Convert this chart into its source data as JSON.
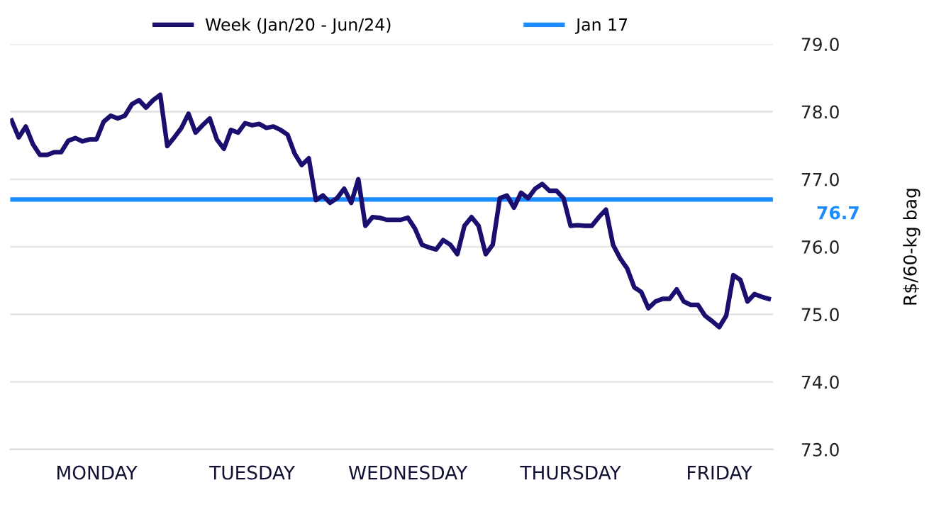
{
  "chart_data": {
    "type": "line",
    "ylabel": "R$/60-kg bag",
    "categories": [
      null,
      null,
      null,
      null,
      null,
      null,
      null,
      null,
      null,
      null,
      null,
      null,
      "MONDAY",
      null,
      null,
      null,
      null,
      null,
      null,
      null,
      null,
      null,
      null,
      null,
      null,
      null,
      null,
      null,
      null,
      null,
      null,
      null,
      null,
      null,
      "TUESDAY",
      null,
      null,
      null,
      null,
      null,
      null,
      null,
      null,
      null,
      null,
      null,
      null,
      null,
      null,
      null,
      null,
      null,
      null,
      null,
      null,
      null,
      "WEDNESDAY",
      null,
      null,
      null,
      null,
      null,
      null,
      null,
      null,
      null,
      null,
      null,
      null,
      null,
      null,
      null,
      null,
      null,
      null,
      null,
      null,
      null,
      null,
      "THURSDAY",
      null,
      null,
      null,
      null,
      null,
      null,
      null,
      null,
      null,
      null,
      null,
      null,
      null,
      null,
      null,
      null,
      null,
      null,
      null,
      null,
      "FRIDAY",
      null,
      null,
      null,
      null,
      null,
      null,
      null
    ],
    "series": [
      {
        "name": "Week (Jan/20 - Jun/24)",
        "color": "#1a0f6e",
        "values": [
          77.87,
          77.62,
          77.78,
          77.52,
          77.36,
          77.36,
          77.4,
          77.4,
          77.57,
          77.61,
          77.56,
          77.59,
          77.59,
          77.85,
          77.94,
          77.9,
          77.94,
          78.11,
          78.17,
          78.06,
          78.17,
          78.25,
          77.49,
          77.62,
          77.76,
          77.97,
          77.69,
          77.8,
          77.9,
          77.59,
          77.45,
          77.73,
          77.69,
          77.83,
          77.8,
          77.82,
          77.76,
          77.78,
          77.73,
          77.66,
          77.38,
          77.21,
          77.31,
          76.69,
          76.76,
          76.65,
          76.72,
          76.86,
          76.65,
          77.0,
          76.31,
          76.44,
          76.43,
          76.4,
          76.4,
          76.4,
          76.43,
          76.27,
          76.03,
          75.99,
          75.96,
          76.1,
          76.03,
          75.89,
          76.31,
          76.44,
          76.31,
          75.89,
          76.03,
          76.72,
          76.76,
          76.58,
          76.8,
          76.72,
          76.86,
          76.93,
          76.83,
          76.83,
          76.72,
          76.31,
          76.32,
          76.31,
          76.31,
          76.44,
          76.55,
          76.03,
          75.83,
          75.68,
          75.4,
          75.33,
          75.09,
          75.19,
          75.23,
          75.23,
          75.37,
          75.19,
          75.14,
          75.14,
          74.98,
          74.9,
          74.81,
          74.98,
          75.58,
          75.51,
          75.19,
          75.3,
          75.26,
          75.23
        ]
      }
    ],
    "ylim": [
      73.0,
      79.0
    ],
    "yticks": [
      {
        "value": 73,
        "label": "73.0"
      },
      {
        "value": 74,
        "label": "74.0"
      },
      {
        "value": 75,
        "label": "75.0"
      },
      {
        "value": 76,
        "label": "76.0"
      },
      {
        "value": 77,
        "label": "77.0"
      },
      {
        "value": 78,
        "label": "78.0"
      },
      {
        "value": 79,
        "label": "79.0"
      }
    ],
    "ref_lines": [
      {
        "axis": "y",
        "value": 76.7,
        "label": "Jan 17",
        "color": "#1a8cff"
      }
    ],
    "annotations": [
      "76.7"
    ],
    "grid": "y",
    "legend": "top",
    "marker": "none",
    "line_style": "solid"
  }
}
